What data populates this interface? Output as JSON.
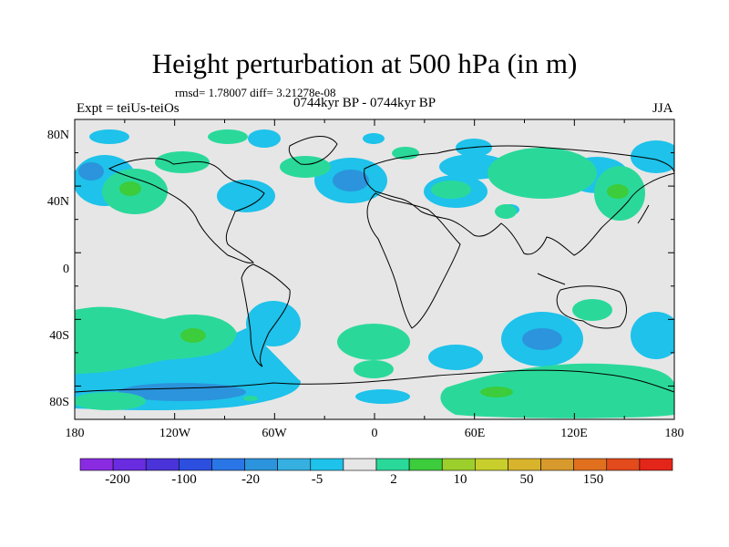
{
  "title": "Height perturbation at 500 hPa (in m)",
  "stats": "rmsd= 1.78007 diff= 3.21278e-08",
  "left_label": "Expt = teiUs-teiOs",
  "center_label": "0744kyr BP - 0744kyr BP",
  "right_label": "JJA",
  "lat_ticks": [
    "80N",
    "40N",
    "0",
    "40S",
    "80S"
  ],
  "lon_ticks": [
    "180",
    "120W",
    "60W",
    "0",
    "60E",
    "120E",
    "180"
  ],
  "colorbar": {
    "labels": [
      "-200",
      "-100",
      "-20",
      "-5",
      "2",
      "10",
      "50",
      "150"
    ],
    "colors": [
      "#8a2be2",
      "#6a2ce0",
      "#4a33d8",
      "#2d4fe0",
      "#2a76e6",
      "#2b94dc",
      "#35b0e0",
      "#1ec2ea",
      "#e6e6e6",
      "#2ad99a",
      "#3ccc3c",
      "#9ccf2c",
      "#c8cf2c",
      "#d8b42c",
      "#d89a2c",
      "#e0701e",
      "#e34a1c",
      "#e4251a"
    ]
  },
  "map_colors": {
    "background": "#e6e6e6",
    "neg_weak": "#1ec2ea",
    "neg_mod": "#2b94dc",
    "pos_weak": "#2ad99a",
    "pos_mod": "#3ccc3c"
  }
}
